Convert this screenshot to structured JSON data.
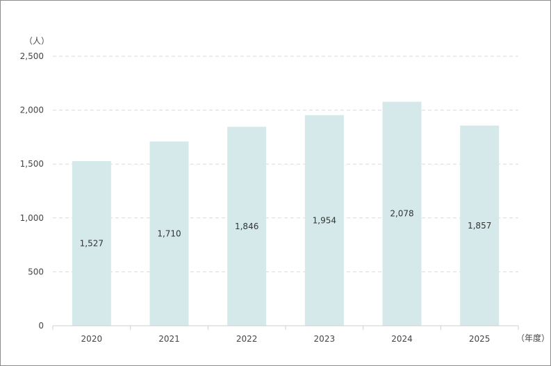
{
  "chart_data": {
    "type": "bar",
    "title": "",
    "y_unit": "（人）",
    "x_unit": "（年度）",
    "categories": [
      "2020",
      "2021",
      "2022",
      "2023",
      "2024",
      "2025"
    ],
    "values": [
      1527,
      1710,
      1846,
      1954,
      2078,
      1857
    ],
    "value_labels": [
      "1,527",
      "1,710",
      "1,846",
      "1,954",
      "2,078",
      "1,857"
    ],
    "ylim": [
      0,
      2500
    ],
    "yticks": [
      0,
      500,
      1000,
      1500,
      2000,
      2500
    ],
    "ytick_labels": [
      "0",
      "500",
      "1,000",
      "1,500",
      "2,000",
      "2,500"
    ],
    "grid": true,
    "bar_color": "#d5e9ea"
  }
}
